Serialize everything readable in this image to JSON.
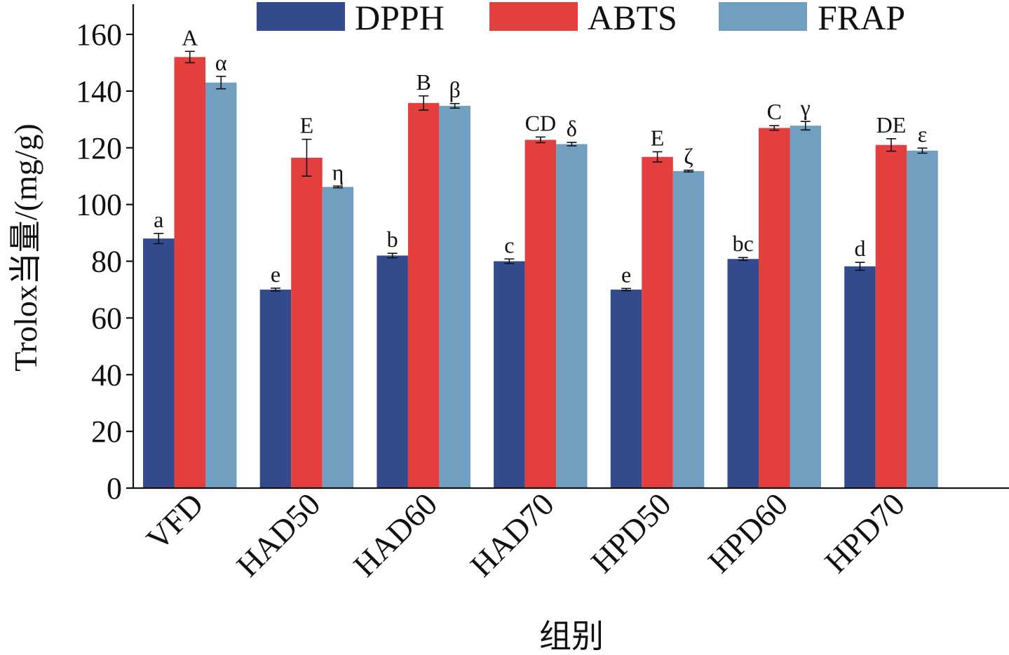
{
  "chart_data": {
    "type": "bar",
    "categories": [
      "VFD",
      "HAD50",
      "HAD60",
      "HAD70",
      "HPD50",
      "HPD60",
      "HPD70"
    ],
    "series": [
      {
        "name": "DPPH",
        "color": "#334a8c",
        "values": [
          88,
          70,
          82,
          80,
          70,
          80.8,
          78.2
        ],
        "errors": [
          1.8,
          0.5,
          0.8,
          0.8,
          0.4,
          0.5,
          1.4
        ],
        "labels": [
          "a",
          "e",
          "b",
          "c",
          "e",
          "bc",
          "d"
        ]
      },
      {
        "name": "ABTS",
        "color": "#e43f3f",
        "values": [
          152,
          116.5,
          135.8,
          122.8,
          116.8,
          127,
          121
        ],
        "errors": [
          2,
          6.5,
          2.5,
          1,
          1.8,
          0.8,
          2.2
        ],
        "labels": [
          "A",
          "E",
          "B",
          "CD",
          "E",
          "C",
          "DE"
        ]
      },
      {
        "name": "FRAP",
        "color": "#719fbf",
        "values": [
          143,
          106.2,
          134.8,
          121.3,
          111.8,
          127.8,
          119
        ],
        "errors": [
          2.2,
          0.3,
          0.8,
          0.6,
          0.3,
          1.5,
          0.9
        ],
        "labels": [
          "α",
          "η",
          "β",
          "δ",
          "ζ",
          "γ",
          "ε"
        ]
      }
    ],
    "ylabel": "Trolox当量/(mg/g)",
    "xlabel": "组别",
    "yticks": [
      0,
      20,
      40,
      60,
      80,
      100,
      120,
      140,
      160
    ],
    "ylim": [
      0,
      170
    ],
    "legend_position": "top"
  }
}
